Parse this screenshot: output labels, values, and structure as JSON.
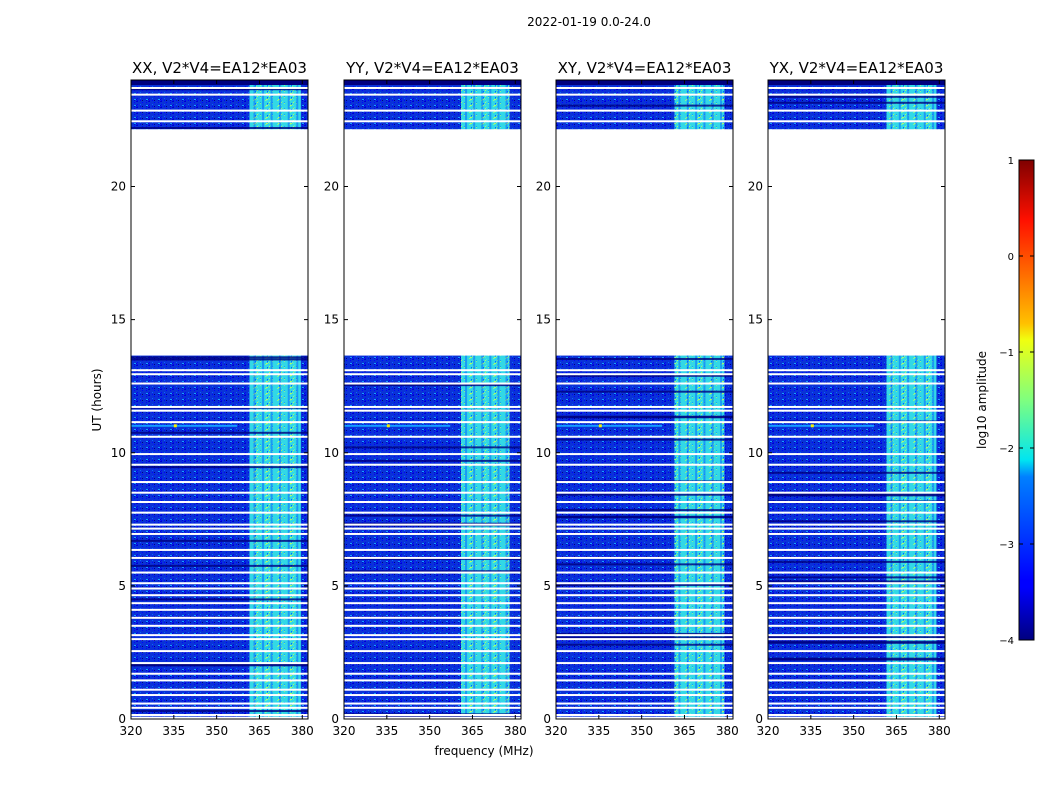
{
  "chart_data": {
    "type": "heatmap",
    "suptitle": "2022-01-19 0.0-24.0",
    "xlabel": "frequency (MHz)",
    "ylabel": "UT (hours)",
    "xlim": [
      320,
      382
    ],
    "ylim": [
      0,
      24
    ],
    "xticks": [
      320,
      335,
      350,
      365,
      380
    ],
    "yticks": [
      0,
      5,
      10,
      15,
      20
    ],
    "colormap": "jet",
    "colors": {
      "lowest": "#00007f",
      "low": "#0a32d8",
      "mid": "#14d2e6",
      "high": "#8cf58c",
      "peak": "#f5f000",
      "max": "#7f0000"
    },
    "colorbar": {
      "label": "log10 amplitude",
      "min": -4,
      "max": 1,
      "ticks": [
        -4,
        -3,
        -2,
        -1,
        0,
        1
      ],
      "tick_labels": [
        "−4",
        "−3",
        "−2",
        "−1",
        "0",
        "1"
      ]
    },
    "data_gaps_ut": [
      [
        13.65,
        22.15
      ]
    ],
    "flagged_ut_rows": [
      0.05,
      0.15,
      0.42,
      0.58,
      0.9,
      1.1,
      1.45,
      1.7,
      2.1,
      2.55,
      3.0,
      3.15,
      3.5,
      3.8,
      4.1,
      4.35,
      4.65,
      4.9,
      5.1,
      5.5,
      6.05,
      6.35,
      6.95,
      7.15,
      7.3,
      7.75,
      8.15,
      8.5,
      8.9,
      9.55,
      9.95,
      10.6,
      11.15,
      11.58,
      11.72,
      12.6,
      12.95,
      13.1,
      22.45,
      22.85,
      23.45,
      23.7
    ],
    "panels": [
      {
        "title": "XX, V2*V4=EA12*EA03",
        "bright_band_mhz": [
          361.5,
          379.5
        ],
        "lower_band_start_mhz": 361.5
      },
      {
        "title": "YY, V2*V4=EA12*EA03",
        "bright_band_mhz": [
          361.0,
          378.0
        ],
        "lower_band_start_mhz": 361.0
      },
      {
        "title": "XY, V2*V4=EA12*EA03",
        "bright_band_mhz": [
          361.5,
          379.0
        ],
        "lower_band_start_mhz": 361.5
      },
      {
        "title": "YX, V2*V4=EA12*EA03",
        "bright_band_mhz": [
          361.5,
          379.0
        ],
        "lower_band_start_mhz": 361.5
      }
    ]
  }
}
